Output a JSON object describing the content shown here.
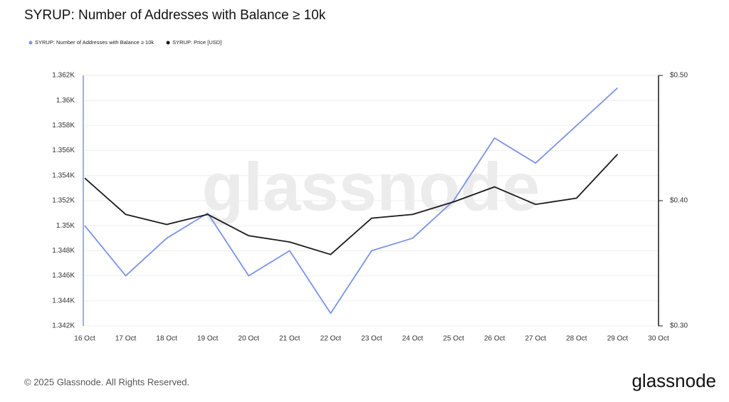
{
  "chart_data": {
    "type": "line",
    "title": "SYRUP: Number of Addresses with Balance ≥ 10k",
    "watermark": "glassnode",
    "categories": [
      "16 Oct",
      "17 Oct",
      "18 Oct",
      "19 Oct",
      "20 Oct",
      "21 Oct",
      "22 Oct",
      "23 Oct",
      "24 Oct",
      "25 Oct",
      "26 Oct",
      "27 Oct",
      "28 Oct",
      "29 Oct",
      "30 Oct"
    ],
    "series": [
      {
        "name": "SYRUP: Number of Addresses with Balance ≥ 10k",
        "color": "#7b93e8",
        "values": [
          1350,
          1346,
          1349,
          1351,
          1346,
          1348,
          1343,
          1348,
          1349,
          1352,
          1357,
          1355,
          1358,
          1361,
          null
        ]
      },
      {
        "name": "SYRUP: Price [USD]",
        "color": "#1a1a1a",
        "axis": "y2",
        "values": [
          0.418,
          0.389,
          0.381,
          0.389,
          0.372,
          0.367,
          0.357,
          0.386,
          0.389,
          0.399,
          0.411,
          0.397,
          0.402,
          0.437,
          null
        ]
      }
    ],
    "ylim": [
      1342,
      1362
    ],
    "yticks": [
      {
        "value": 1342,
        "label": "1.342K"
      },
      {
        "value": 1344,
        "label": "1.344K"
      },
      {
        "value": 1346,
        "label": "1.346K"
      },
      {
        "value": 1348,
        "label": "1.348K"
      },
      {
        "value": 1350,
        "label": "1.35K"
      },
      {
        "value": 1352,
        "label": "1.352K"
      },
      {
        "value": 1354,
        "label": "1.354K"
      },
      {
        "value": 1356,
        "label": "1.356K"
      },
      {
        "value": 1358,
        "label": "1.358K"
      },
      {
        "value": 1360,
        "label": "1.36K"
      },
      {
        "value": 1362,
        "label": "1.362K"
      }
    ],
    "y2lim": [
      0.3,
      0.5
    ],
    "y2ticks": [
      {
        "value": 0.3,
        "label": "$0.30"
      },
      {
        "value": 0.4,
        "label": "$0.40"
      },
      {
        "value": 0.5,
        "label": "$0.50"
      }
    ],
    "grid": true,
    "legend": "top-left"
  },
  "footer": {
    "copyright": "© 2025 Glassnode. All Rights Reserved.",
    "logo": "glassnode"
  }
}
